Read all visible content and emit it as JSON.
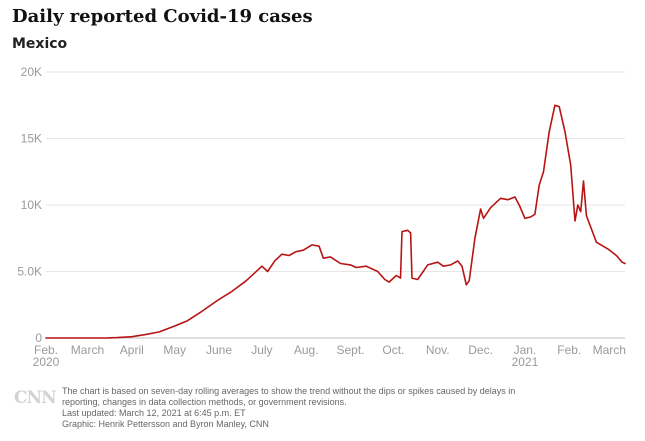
{
  "chart_data": {
    "type": "line",
    "title": "Daily reported Covid-19 cases",
    "subtitle": "Mexico",
    "xlabel": "",
    "ylabel": "",
    "ylim": [
      0,
      20000
    ],
    "yticks": [
      {
        "value": 0,
        "label": "0"
      },
      {
        "value": 5000,
        "label": "5.0K"
      },
      {
        "value": 10000,
        "label": "10K"
      },
      {
        "value": 15000,
        "label": "15K"
      },
      {
        "value": 20000,
        "label": "20K"
      }
    ],
    "xticks": [
      {
        "date": "2020-02-01",
        "label": "Feb.",
        "sub": "2020"
      },
      {
        "date": "2020-03-01",
        "label": "March",
        "sub": ""
      },
      {
        "date": "2020-04-01",
        "label": "April",
        "sub": ""
      },
      {
        "date": "2020-05-01",
        "label": "May",
        "sub": ""
      },
      {
        "date": "2020-06-01",
        "label": "June",
        "sub": ""
      },
      {
        "date": "2020-07-01",
        "label": "July",
        "sub": ""
      },
      {
        "date": "2020-08-01",
        "label": "Aug.",
        "sub": ""
      },
      {
        "date": "2020-09-01",
        "label": "Sept.",
        "sub": ""
      },
      {
        "date": "2020-10-01",
        "label": "Oct.",
        "sub": ""
      },
      {
        "date": "2020-11-01",
        "label": "Nov.",
        "sub": ""
      },
      {
        "date": "2020-12-01",
        "label": "Dec.",
        "sub": ""
      },
      {
        "date": "2021-01-01",
        "label": "Jan.",
        "sub": "2021"
      },
      {
        "date": "2021-02-01",
        "label": "Feb.",
        "sub": ""
      },
      {
        "date": "2021-03-01",
        "label": "March",
        "sub": ""
      }
    ],
    "grid": true,
    "line_color": "#b81414",
    "series": [
      {
        "name": "",
        "points": [
          [
            "2020-02-01",
            0
          ],
          [
            "2020-03-01",
            0
          ],
          [
            "2020-03-15",
            10
          ],
          [
            "2020-03-22",
            30
          ],
          [
            "2020-04-01",
            100
          ],
          [
            "2020-04-10",
            250
          ],
          [
            "2020-04-20",
            450
          ],
          [
            "2020-05-01",
            900
          ],
          [
            "2020-05-10",
            1300
          ],
          [
            "2020-05-20",
            2000
          ],
          [
            "2020-06-01",
            2900
          ],
          [
            "2020-06-10",
            3500
          ],
          [
            "2020-06-20",
            4300
          ],
          [
            "2020-06-25",
            4800
          ],
          [
            "2020-07-01",
            5400
          ],
          [
            "2020-07-05",
            5000
          ],
          [
            "2020-07-10",
            5800
          ],
          [
            "2020-07-15",
            6300
          ],
          [
            "2020-07-20",
            6200
          ],
          [
            "2020-07-25",
            6500
          ],
          [
            "2020-07-30",
            6600
          ],
          [
            "2020-08-05",
            7000
          ],
          [
            "2020-08-10",
            6900
          ],
          [
            "2020-08-13",
            6000
          ],
          [
            "2020-08-18",
            6100
          ],
          [
            "2020-08-25",
            5600
          ],
          [
            "2020-09-01",
            5500
          ],
          [
            "2020-09-05",
            5300
          ],
          [
            "2020-09-12",
            5400
          ],
          [
            "2020-09-20",
            5000
          ],
          [
            "2020-09-25",
            4400
          ],
          [
            "2020-09-28",
            4200
          ],
          [
            "2020-10-03",
            4700
          ],
          [
            "2020-10-06",
            4500
          ],
          [
            "2020-10-07",
            8000
          ],
          [
            "2020-10-11",
            8100
          ],
          [
            "2020-10-13",
            7900
          ],
          [
            "2020-10-14",
            4500
          ],
          [
            "2020-10-18",
            4400
          ],
          [
            "2020-10-25",
            5500
          ],
          [
            "2020-11-01",
            5700
          ],
          [
            "2020-11-05",
            5400
          ],
          [
            "2020-11-10",
            5500
          ],
          [
            "2020-11-15",
            5800
          ],
          [
            "2020-11-18",
            5400
          ],
          [
            "2020-11-21",
            4000
          ],
          [
            "2020-11-23",
            4300
          ],
          [
            "2020-11-27",
            7500
          ],
          [
            "2020-12-01",
            9700
          ],
          [
            "2020-12-03",
            9000
          ],
          [
            "2020-12-08",
            9800
          ],
          [
            "2020-12-15",
            10500
          ],
          [
            "2020-12-20",
            10400
          ],
          [
            "2020-12-25",
            10600
          ],
          [
            "2020-12-28",
            10000
          ],
          [
            "2021-01-01",
            9000
          ],
          [
            "2021-01-05",
            9100
          ],
          [
            "2021-01-08",
            9300
          ],
          [
            "2021-01-11",
            11500
          ],
          [
            "2021-01-14",
            12500
          ],
          [
            "2021-01-18",
            15500
          ],
          [
            "2021-01-22",
            17500
          ],
          [
            "2021-01-25",
            17400
          ],
          [
            "2021-01-29",
            15500
          ],
          [
            "2021-02-02",
            13000
          ],
          [
            "2021-02-05",
            8800
          ],
          [
            "2021-02-07",
            10000
          ],
          [
            "2021-02-09",
            9500
          ],
          [
            "2021-02-11",
            11800
          ],
          [
            "2021-02-13",
            9200
          ],
          [
            "2021-02-20",
            7200
          ],
          [
            "2021-02-28",
            6700
          ],
          [
            "2021-03-06",
            6200
          ],
          [
            "2021-03-10",
            5700
          ],
          [
            "2021-03-12",
            5600
          ]
        ]
      }
    ]
  },
  "logo": "CNN",
  "footnote": {
    "line1": "The chart is based on seven-day rolling averages to show the trend without the dips or spikes caused by delays in",
    "line2": "reporting, changes in data collection methods, or government revisions.",
    "line3": "Last updated: March 12, 2021 at 6:45 p.m. ET",
    "line4": "Graphic: Henrik Pettersson and Byron Manley, CNN"
  }
}
